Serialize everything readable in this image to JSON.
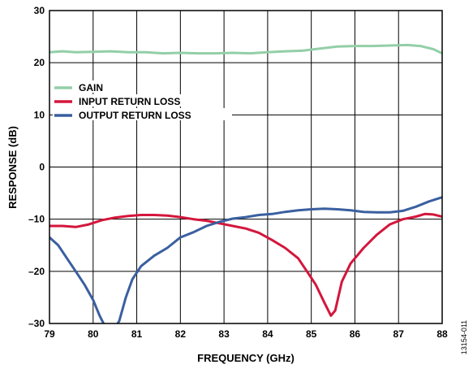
{
  "chart_data": {
    "type": "line",
    "xlabel": "FREQUENCY (GHz)",
    "ylabel": "RESPONSE (dB)",
    "xlim": [
      79,
      88
    ],
    "ylim": [
      -30,
      30
    ],
    "x_ticks": [
      "79",
      "80",
      "81",
      "82",
      "83",
      "84",
      "85",
      "86",
      "87",
      "88"
    ],
    "y_ticks": [
      "30",
      "20",
      "10",
      "0",
      "–10",
      "–20",
      "–30"
    ],
    "grid": true,
    "legend_position": "upper-left",
    "figure_id": "13154-011",
    "series": [
      {
        "name": "GAIN",
        "color": "#93cfa8",
        "x": [
          79.0,
          79.3,
          79.6,
          80.0,
          80.4,
          80.8,
          81.2,
          81.6,
          82.0,
          82.4,
          82.8,
          83.2,
          83.6,
          84.0,
          84.4,
          84.8,
          85.2,
          85.6,
          86.0,
          86.4,
          86.8,
          87.2,
          87.5,
          87.8,
          88.0
        ],
        "values": [
          22.0,
          22.2,
          22.0,
          22.1,
          22.2,
          22.0,
          22.0,
          21.8,
          21.9,
          21.8,
          21.8,
          21.9,
          21.8,
          22.0,
          22.2,
          22.3,
          22.7,
          23.1,
          23.2,
          23.2,
          23.3,
          23.4,
          23.2,
          22.6,
          21.8
        ]
      },
      {
        "name": "INPUT RETURN LOSS",
        "color": "#d4163c",
        "x": [
          79.0,
          79.3,
          79.6,
          79.9,
          80.2,
          80.5,
          80.8,
          81.1,
          81.4,
          81.7,
          82.0,
          82.3,
          82.6,
          82.9,
          83.2,
          83.5,
          83.8,
          84.1,
          84.4,
          84.7,
          84.9,
          85.1,
          85.3,
          85.45,
          85.55,
          85.7,
          85.9,
          86.2,
          86.5,
          86.8,
          87.1,
          87.4,
          87.6,
          87.8,
          88.0
        ],
        "values": [
          -11.3,
          -11.3,
          -11.5,
          -11.0,
          -10.2,
          -9.7,
          -9.4,
          -9.2,
          -9.2,
          -9.3,
          -9.6,
          -10.0,
          -10.3,
          -10.8,
          -11.3,
          -11.8,
          -12.6,
          -14.0,
          -15.5,
          -17.5,
          -20.0,
          -22.5,
          -26.0,
          -28.5,
          -27.5,
          -22.0,
          -18.5,
          -15.5,
          -13.0,
          -11.0,
          -10.0,
          -9.5,
          -9.0,
          -9.1,
          -9.5
        ]
      },
      {
        "name": "OUTPUT RETURN LOSS",
        "color": "#3a5fa0",
        "x": [
          79.0,
          79.2,
          79.4,
          79.6,
          79.8,
          80.0,
          80.15,
          80.3,
          80.45,
          80.6,
          80.75,
          80.9,
          81.1,
          81.4,
          81.7,
          82.0,
          82.3,
          82.6,
          82.9,
          83.2,
          83.5,
          83.8,
          84.1,
          84.4,
          84.7,
          85.0,
          85.3,
          85.6,
          85.9,
          86.2,
          86.5,
          86.8,
          87.1,
          87.4,
          87.7,
          88.0
        ],
        "values": [
          -13.5,
          -15.0,
          -17.5,
          -20.0,
          -22.5,
          -25.5,
          -28.5,
          -31.0,
          -31.5,
          -29.5,
          -25.0,
          -21.5,
          -19.0,
          -17.0,
          -15.5,
          -13.5,
          -12.5,
          -11.3,
          -10.5,
          -9.9,
          -9.6,
          -9.2,
          -9.0,
          -8.6,
          -8.3,
          -8.1,
          -8.0,
          -8.1,
          -8.3,
          -8.6,
          -8.7,
          -8.7,
          -8.4,
          -7.6,
          -6.6,
          -5.8
        ]
      }
    ]
  }
}
